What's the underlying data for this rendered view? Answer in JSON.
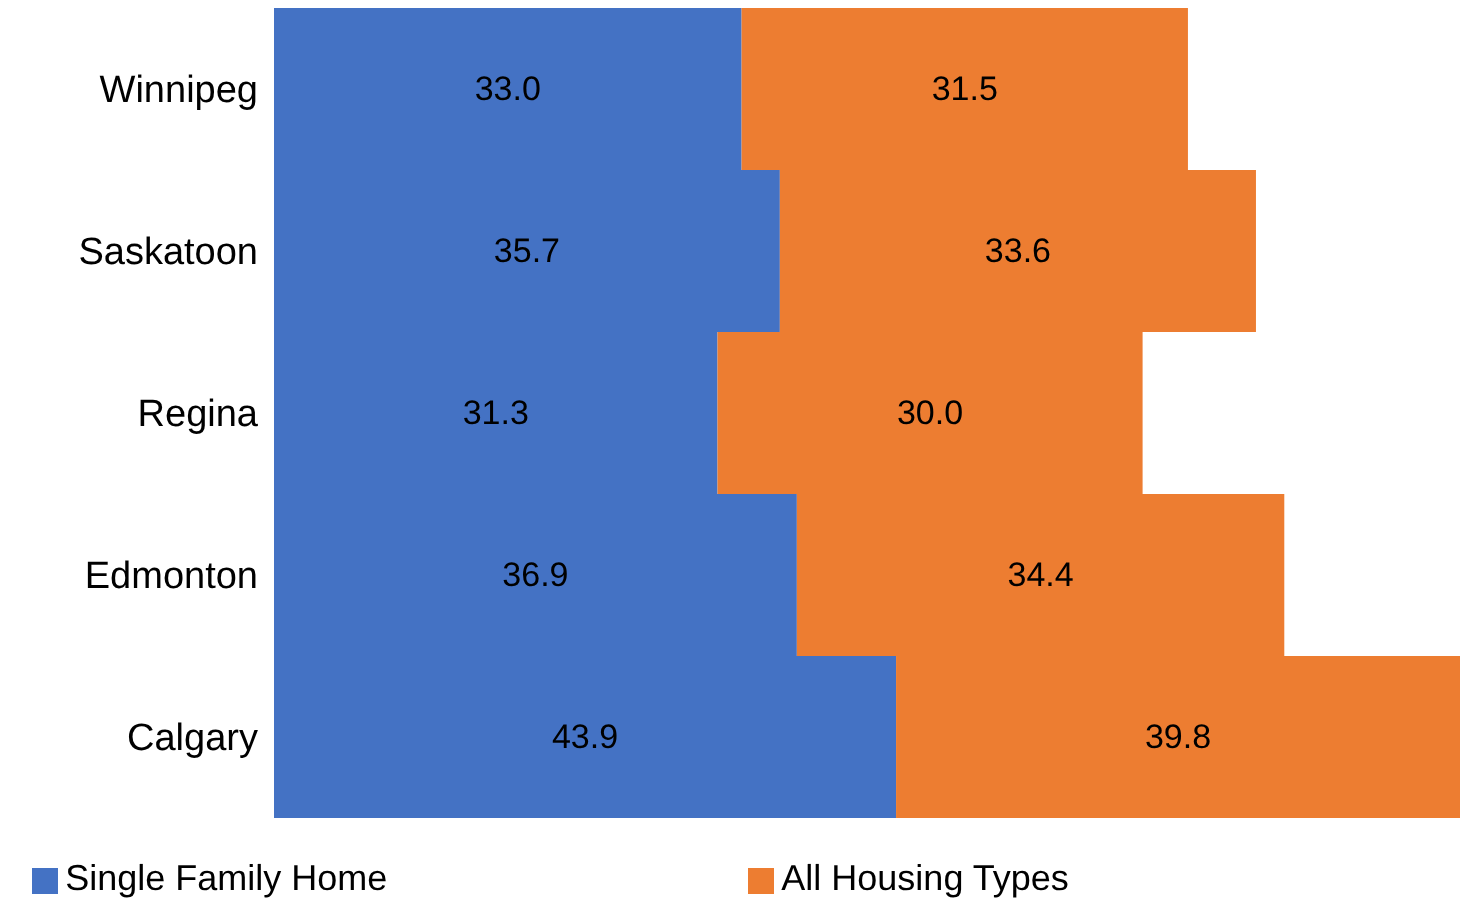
{
  "chart_data": {
    "type": "bar",
    "orientation": "horizontal",
    "stacked": true,
    "categories": [
      "Winnipeg",
      "Saskatoon",
      "Regina",
      "Edmonton",
      "Calgary"
    ],
    "series": [
      {
        "name": "Single Family Home",
        "color": "#4472c4",
        "values": [
          33.0,
          35.7,
          31.3,
          36.9,
          43.9
        ],
        "value_labels": [
          "33.0",
          "35.7",
          "31.3",
          "36.9",
          "43.9"
        ]
      },
      {
        "name": "All Housing Types",
        "color": "#ed7d31",
        "values": [
          31.5,
          33.6,
          30.0,
          34.4,
          39.8
        ],
        "value_labels": [
          "31.5",
          "33.6",
          "30.0",
          "34.4",
          "39.8"
        ]
      }
    ],
    "legend": "bottom",
    "grid": false
  }
}
